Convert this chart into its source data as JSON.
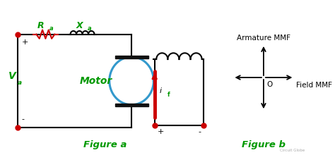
{
  "bg_color": "#ffffff",
  "line_color": "#000000",
  "green_color": "#009900",
  "red_color": "#cc0000",
  "blue_color": "#3399cc",
  "fig_label_a": "Figure a",
  "fig_label_b": "Figure b",
  "va_label": "V",
  "va_sub": "a",
  "ra_label": "R",
  "ra_sub": "a",
  "xa_label": "X",
  "xa_sub": "a",
  "motor_label": "Motor",
  "if_label": "i",
  "if_sub": "f",
  "armature_label": "Armature MMF",
  "field_label": "Field MMF",
  "o_label": "O",
  "watermark": "Circuit Globe",
  "plus_label": "+",
  "minus_label": "-"
}
